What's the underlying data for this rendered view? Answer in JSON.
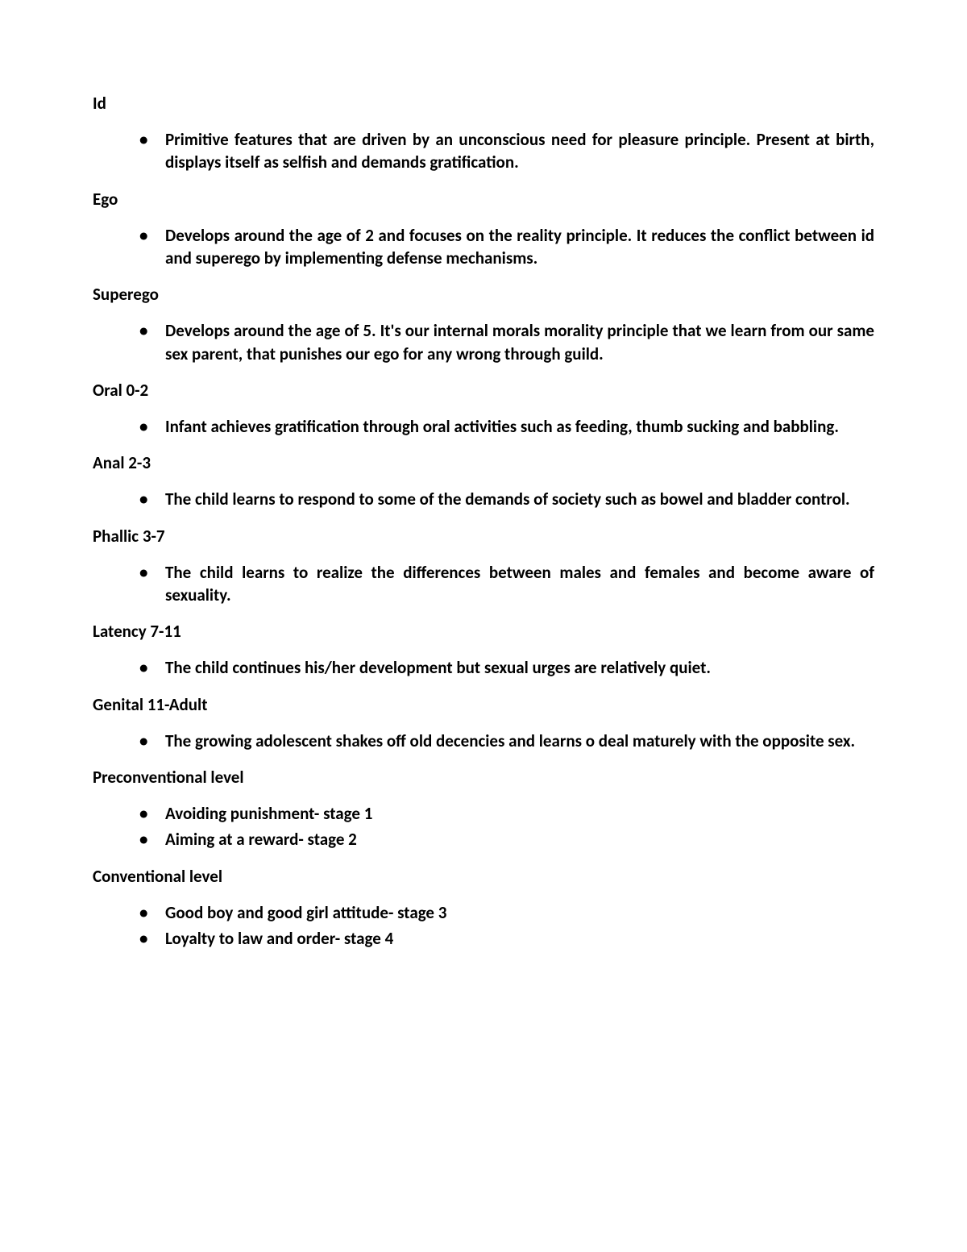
{
  "sections": [
    {
      "heading": "Id",
      "items": [
        "Primitive features that are driven by an unconscious need for pleasure principle. Present at birth, displays itself as selfish and demands gratification."
      ]
    },
    {
      "heading": "Ego",
      "items": [
        "Develops around the age of 2 and focuses on the reality principle. It reduces the conflict between id and superego by implementing defense mechanisms."
      ]
    },
    {
      "heading": "Superego",
      "items": [
        "Develops around the age of 5. It's our internal morals morality principle that we learn from our same sex parent, that punishes our ego for any wrong through guild."
      ]
    },
    {
      "heading": "Oral 0-2",
      "items": [
        "Infant achieves gratification through oral activities such as feeding, thumb sucking and babbling."
      ]
    },
    {
      "heading": "Anal 2-3",
      "items": [
        "The child learns to respond to some of the demands of society such as bowel and bladder control."
      ]
    },
    {
      "heading": "Phallic 3-7",
      "items": [
        "The child learns to realize the differences between males and females and become aware of sexuality."
      ]
    },
    {
      "heading": "Latency 7-11",
      "items": [
        "The child continues his/her development but sexual urges are relatively quiet."
      ]
    },
    {
      "heading": "Genital 11-Adult",
      "items": [
        "The growing adolescent shakes off old decencies and learns o deal maturely with the opposite sex."
      ]
    },
    {
      "heading": "Preconventional level",
      "items": [
        "Avoiding punishment- stage 1",
        "Aiming at a reward- stage 2"
      ]
    },
    {
      "heading": "Conventional level",
      "items": [
        "Good boy and good girl attitude- stage 3",
        "Loyalty to law and order- stage 4"
      ]
    }
  ]
}
